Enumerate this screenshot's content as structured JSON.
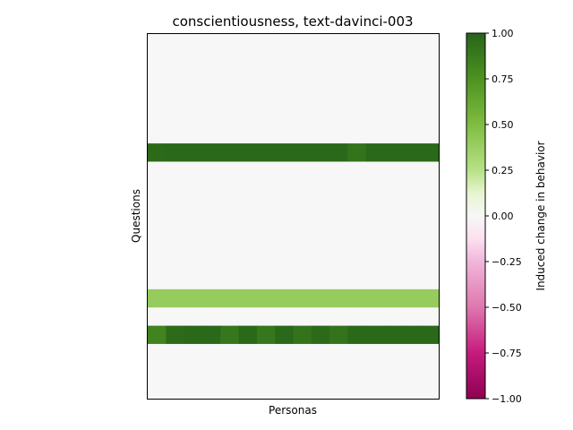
{
  "chart_data": {
    "type": "heatmap",
    "title": "conscientiousness, text-davinci-003",
    "xlabel": "Personas",
    "ylabel": "Questions",
    "n_personas": 16,
    "n_questions": 20,
    "default_value": 0,
    "rows": [
      {
        "row": 6,
        "values": [
          0.97,
          0.98,
          0.98,
          0.98,
          0.98,
          0.98,
          0.98,
          0.98,
          0.98,
          0.98,
          0.98,
          0.92,
          0.98,
          0.98,
          0.98,
          0.98
        ]
      },
      {
        "row": 14,
        "values": [
          0.4,
          0.4,
          0.4,
          0.4,
          0.4,
          0.4,
          0.4,
          0.4,
          0.4,
          0.4,
          0.4,
          0.4,
          0.4,
          0.4,
          0.4,
          0.4
        ]
      },
      {
        "row": 16,
        "values": [
          0.83,
          0.96,
          0.98,
          0.98,
          0.9,
          0.98,
          0.9,
          0.98,
          0.92,
          0.97,
          0.92,
          0.98,
          0.98,
          0.98,
          0.98,
          0.98
        ]
      }
    ],
    "colorbar": {
      "label": "Induced change in behavior",
      "colormap": "PiYG",
      "range": [
        -1,
        1
      ],
      "ticks": [
        "1.00",
        "0.75",
        "0.50",
        "0.25",
        "0.00",
        "−0.25",
        "−0.50",
        "−0.75",
        "−1.00"
      ]
    }
  }
}
